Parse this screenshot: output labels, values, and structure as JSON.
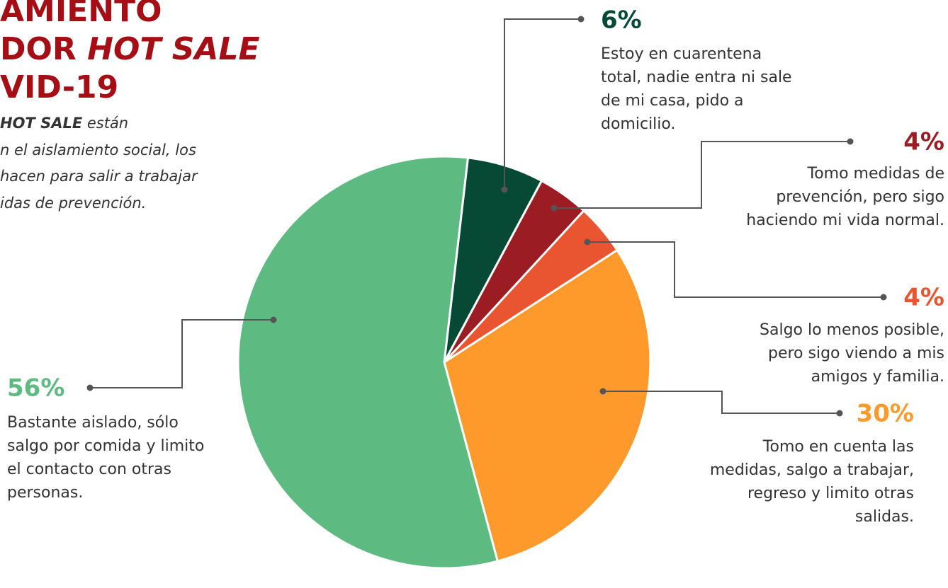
{
  "chart_data": {
    "type": "pie",
    "title_lines": [
      [
        "AMIENTO"
      ],
      [
        "DOR ",
        "HOT SALE"
      ],
      [
        "VID-19"
      ]
    ],
    "subtitle_lines": [
      [
        "HOT SALE",
        " están"
      ],
      [
        "n el aislamiento social, los"
      ],
      [
        "hacen para salir a trabajar"
      ],
      [
        "idas de prevención."
      ]
    ],
    "values": [
      6,
      4,
      4,
      30,
      56
    ],
    "value_labels": [
      "6%",
      "4%",
      "4%",
      "30%",
      "56%"
    ],
    "colors": [
      "#064a36",
      "#9b1c22",
      "#e85530",
      "#fd9a2b",
      "#5dba80"
    ],
    "descriptions": [
      [
        "Estoy en cuarentena",
        "total, nadie entra ni sale",
        "de mi casa, pido a",
        "domicilio."
      ],
      [
        "Tomo medidas de",
        "prevención, pero sigo",
        "haciendo mi vida normal."
      ],
      [
        "Salgo lo menos posible,",
        "pero sigo viendo a mis",
        "amigos y familia."
      ],
      [
        "Tomo en cuenta las",
        "medidas, salgo a trabajar,",
        "regreso y limito otras",
        "salidas."
      ],
      [
        "Bastante aislado, sólo",
        "salgo por comida y limito",
        "el contacto con otras",
        "personas."
      ]
    ]
  }
}
